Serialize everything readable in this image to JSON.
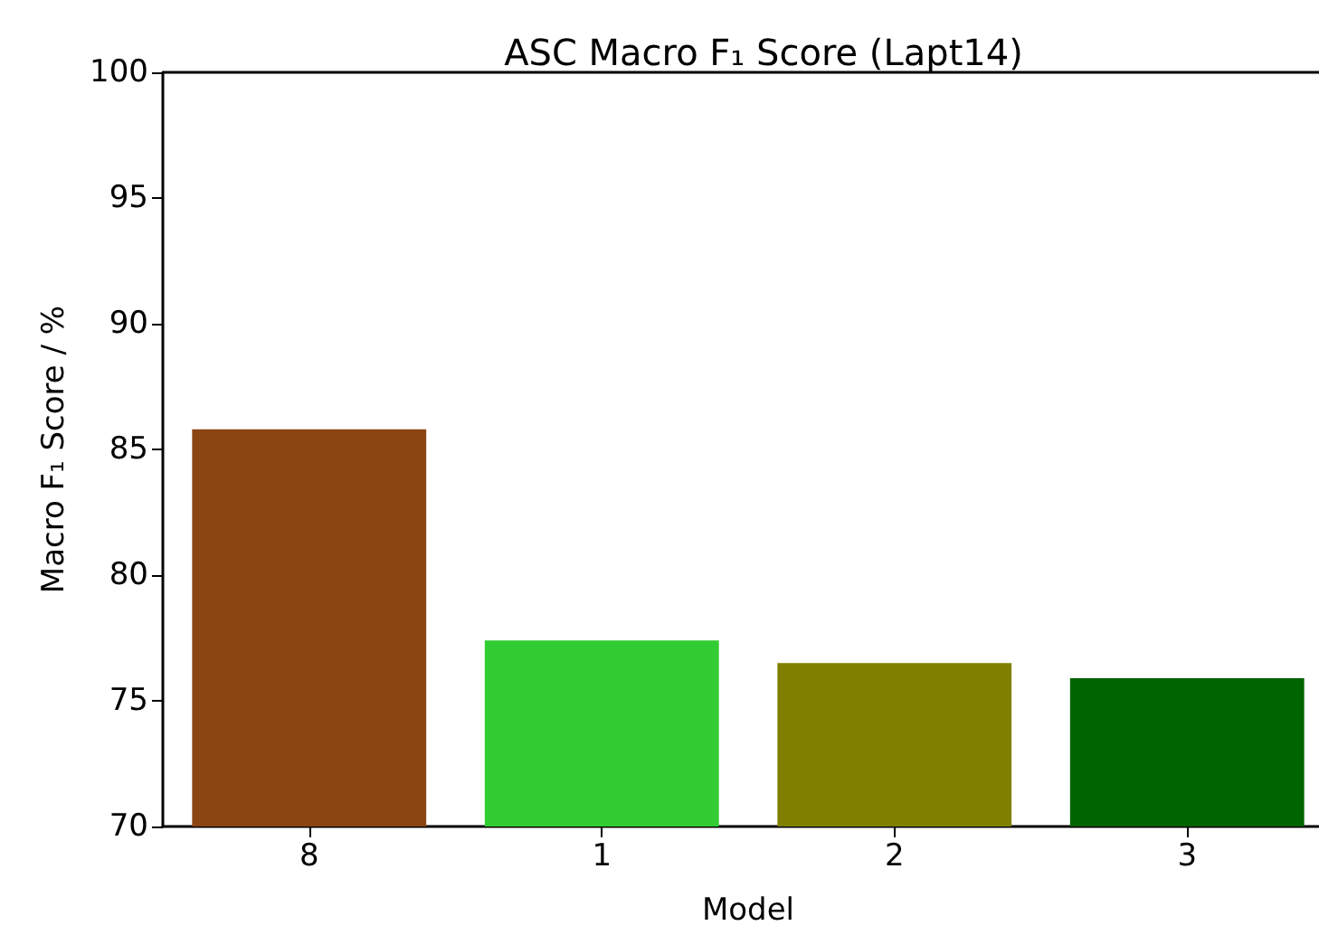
{
  "chart_data": {
    "type": "bar",
    "title": "ASC Macro F₁ Score (Lapt14)",
    "xlabel": "Model",
    "ylabel": "Macro F₁ Score / %",
    "categories": [
      "8",
      "1",
      "2",
      "3"
    ],
    "values": [
      85.8,
      77.4,
      76.5,
      75.9
    ],
    "colors": [
      "#8b4513",
      "#32cd32",
      "#808000",
      "#006400"
    ],
    "ylim": [
      70,
      100
    ],
    "yticks": [
      70,
      75,
      80,
      85,
      90,
      95,
      100
    ]
  }
}
